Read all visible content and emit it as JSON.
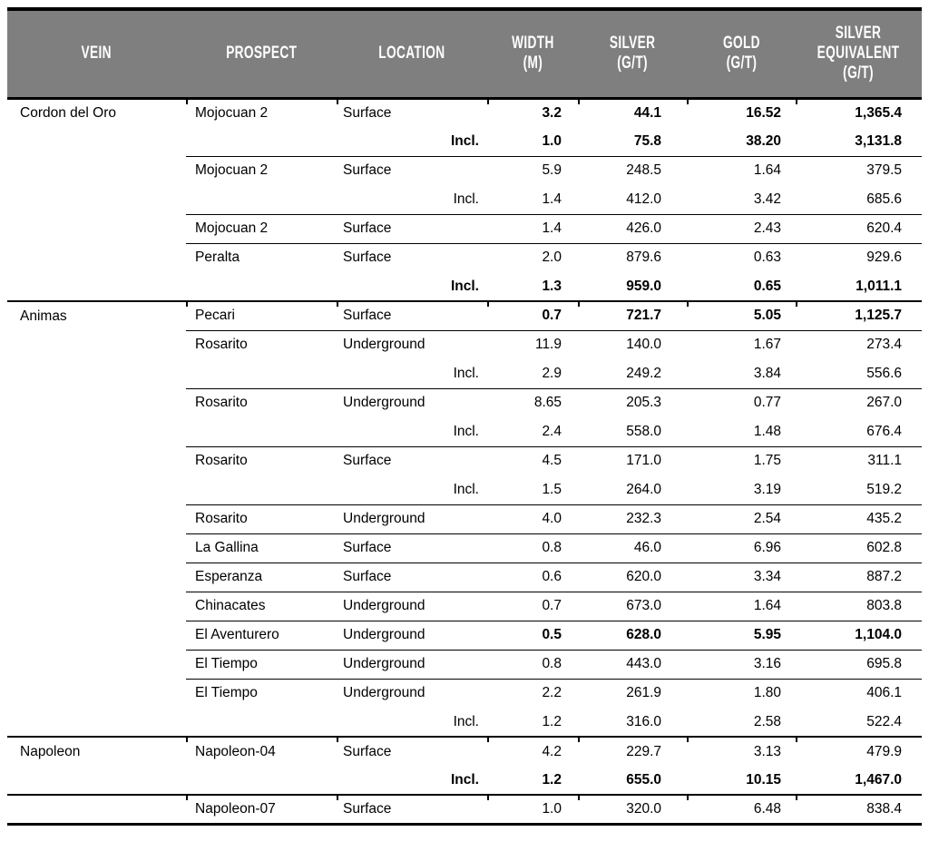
{
  "colors": {
    "header_background": "#7f7f7f",
    "header_text": "#ffffff",
    "body_text": "#000000",
    "rule": "#000000"
  },
  "table": {
    "columns": [
      {
        "key": "vein",
        "label": "VEIN"
      },
      {
        "key": "prospect",
        "label": "PROSPECT"
      },
      {
        "key": "location",
        "label": "LOCATION"
      },
      {
        "key": "width",
        "label": "WIDTH\n(M)"
      },
      {
        "key": "silver",
        "label": "SILVER\n(G/T)"
      },
      {
        "key": "gold",
        "label": "GOLD\n(G/T)"
      },
      {
        "key": "silver_eq",
        "label": "SILVER\nEQUIVALENT\n(G/T)"
      }
    ],
    "rows": [
      {
        "vein": "Cordon del Oro",
        "prospect": "Mojocuan 2",
        "location": "Surface",
        "width": "3.2",
        "silver": "44.1",
        "gold": "16.52",
        "silver_eq": "1,365.4",
        "bold": true
      },
      {
        "incl": "Incl.",
        "width": "1.0",
        "silver": "75.8",
        "gold": "38.20",
        "silver_eq": "3,131.8",
        "bold": true
      },
      {
        "prospect": "Mojocuan 2",
        "location": "Surface",
        "width": "5.9",
        "silver": "248.5",
        "gold": "1.64",
        "silver_eq": "379.5",
        "sep": "group"
      },
      {
        "incl": "Incl.",
        "width": "1.4",
        "silver": "412.0",
        "gold": "3.42",
        "silver_eq": "685.6"
      },
      {
        "prospect": "Mojocuan 2",
        "location": "Surface",
        "width": "1.4",
        "silver": "426.0",
        "gold": "2.43",
        "silver_eq": "620.4",
        "sep": "group"
      },
      {
        "prospect": "Peralta",
        "location": "Surface",
        "width": "2.0",
        "silver": "879.6",
        "gold": "0.63",
        "silver_eq": "929.6",
        "sep": "group"
      },
      {
        "incl": "Incl.",
        "width": "1.3",
        "silver": "959.0",
        "gold": "0.65",
        "silver_eq": "1,011.1",
        "bold": true
      },
      {
        "vein": "Animas",
        "prospect": "Pecari",
        "location": "Surface",
        "width": "0.7",
        "silver": "721.7",
        "gold": "5.05",
        "silver_eq": "1,125.7",
        "bold": true,
        "sep": "vein"
      },
      {
        "prospect": "Rosarito",
        "location": "Underground",
        "width": "11.9",
        "silver": "140.0",
        "gold": "1.67",
        "silver_eq": "273.4",
        "sep": "group"
      },
      {
        "incl": "Incl.",
        "width": "2.9",
        "silver": "249.2",
        "gold": "3.84",
        "silver_eq": "556.6"
      },
      {
        "prospect": "Rosarito",
        "location": "Underground",
        "width": "8.65",
        "silver": "205.3",
        "gold": "0.77",
        "silver_eq": "267.0",
        "sep": "group"
      },
      {
        "incl": "Incl.",
        "width": "2.4",
        "silver": "558.0",
        "gold": "1.48",
        "silver_eq": "676.4"
      },
      {
        "prospect": "Rosarito",
        "location": "Surface",
        "width": "4.5",
        "silver": "171.0",
        "gold": "1.75",
        "silver_eq": "311.1",
        "sep": "group"
      },
      {
        "incl": "Incl.",
        "width": "1.5",
        "silver": "264.0",
        "gold": "3.19",
        "silver_eq": "519.2"
      },
      {
        "prospect": "Rosarito",
        "location": "Underground",
        "width": "4.0",
        "silver": "232.3",
        "gold": "2.54",
        "silver_eq": "435.2",
        "sep": "group"
      },
      {
        "prospect": "La Gallina",
        "location": "Surface",
        "width": "0.8",
        "silver": "46.0",
        "gold": "6.96",
        "silver_eq": "602.8",
        "sep": "group"
      },
      {
        "prospect": "Esperanza",
        "location": "Surface",
        "width": "0.6",
        "silver": "620.0",
        "gold": "3.34",
        "silver_eq": "887.2",
        "sep": "group"
      },
      {
        "prospect": "Chinacates",
        "location": "Underground",
        "width": "0.7",
        "silver": "673.0",
        "gold": "1.64",
        "silver_eq": "803.8",
        "sep": "group"
      },
      {
        "prospect": "El Aventurero",
        "location": "Underground",
        "width": "0.5",
        "silver": "628.0",
        "gold": "5.95",
        "silver_eq": "1,104.0",
        "bold": true,
        "sep": "group"
      },
      {
        "prospect": "El Tiempo",
        "location": "Underground",
        "width": "0.8",
        "silver": "443.0",
        "gold": "3.16",
        "silver_eq": "695.8",
        "sep": "group"
      },
      {
        "prospect": "El Tiempo",
        "location": "Underground",
        "width": "2.2",
        "silver": "261.9",
        "gold": "1.80",
        "silver_eq": "406.1",
        "sep": "group"
      },
      {
        "incl": "Incl.",
        "width": "1.2",
        "silver": "316.0",
        "gold": "2.58",
        "silver_eq": "522.4"
      },
      {
        "vein": "Napoleon",
        "prospect": "Napoleon-04",
        "location": "Surface",
        "width": "4.2",
        "silver": "229.7",
        "gold": "3.13",
        "silver_eq": "479.9",
        "sep": "vein"
      },
      {
        "incl": "Incl.",
        "width": "1.2",
        "silver": "655.0",
        "gold": "10.15",
        "silver_eq": "1,467.0",
        "bold": true
      },
      {
        "prospect": "Napoleon-07",
        "location": "Surface",
        "width": "1.0",
        "silver": "320.0",
        "gold": "6.48",
        "silver_eq": "838.4",
        "sep": "vein"
      }
    ]
  }
}
